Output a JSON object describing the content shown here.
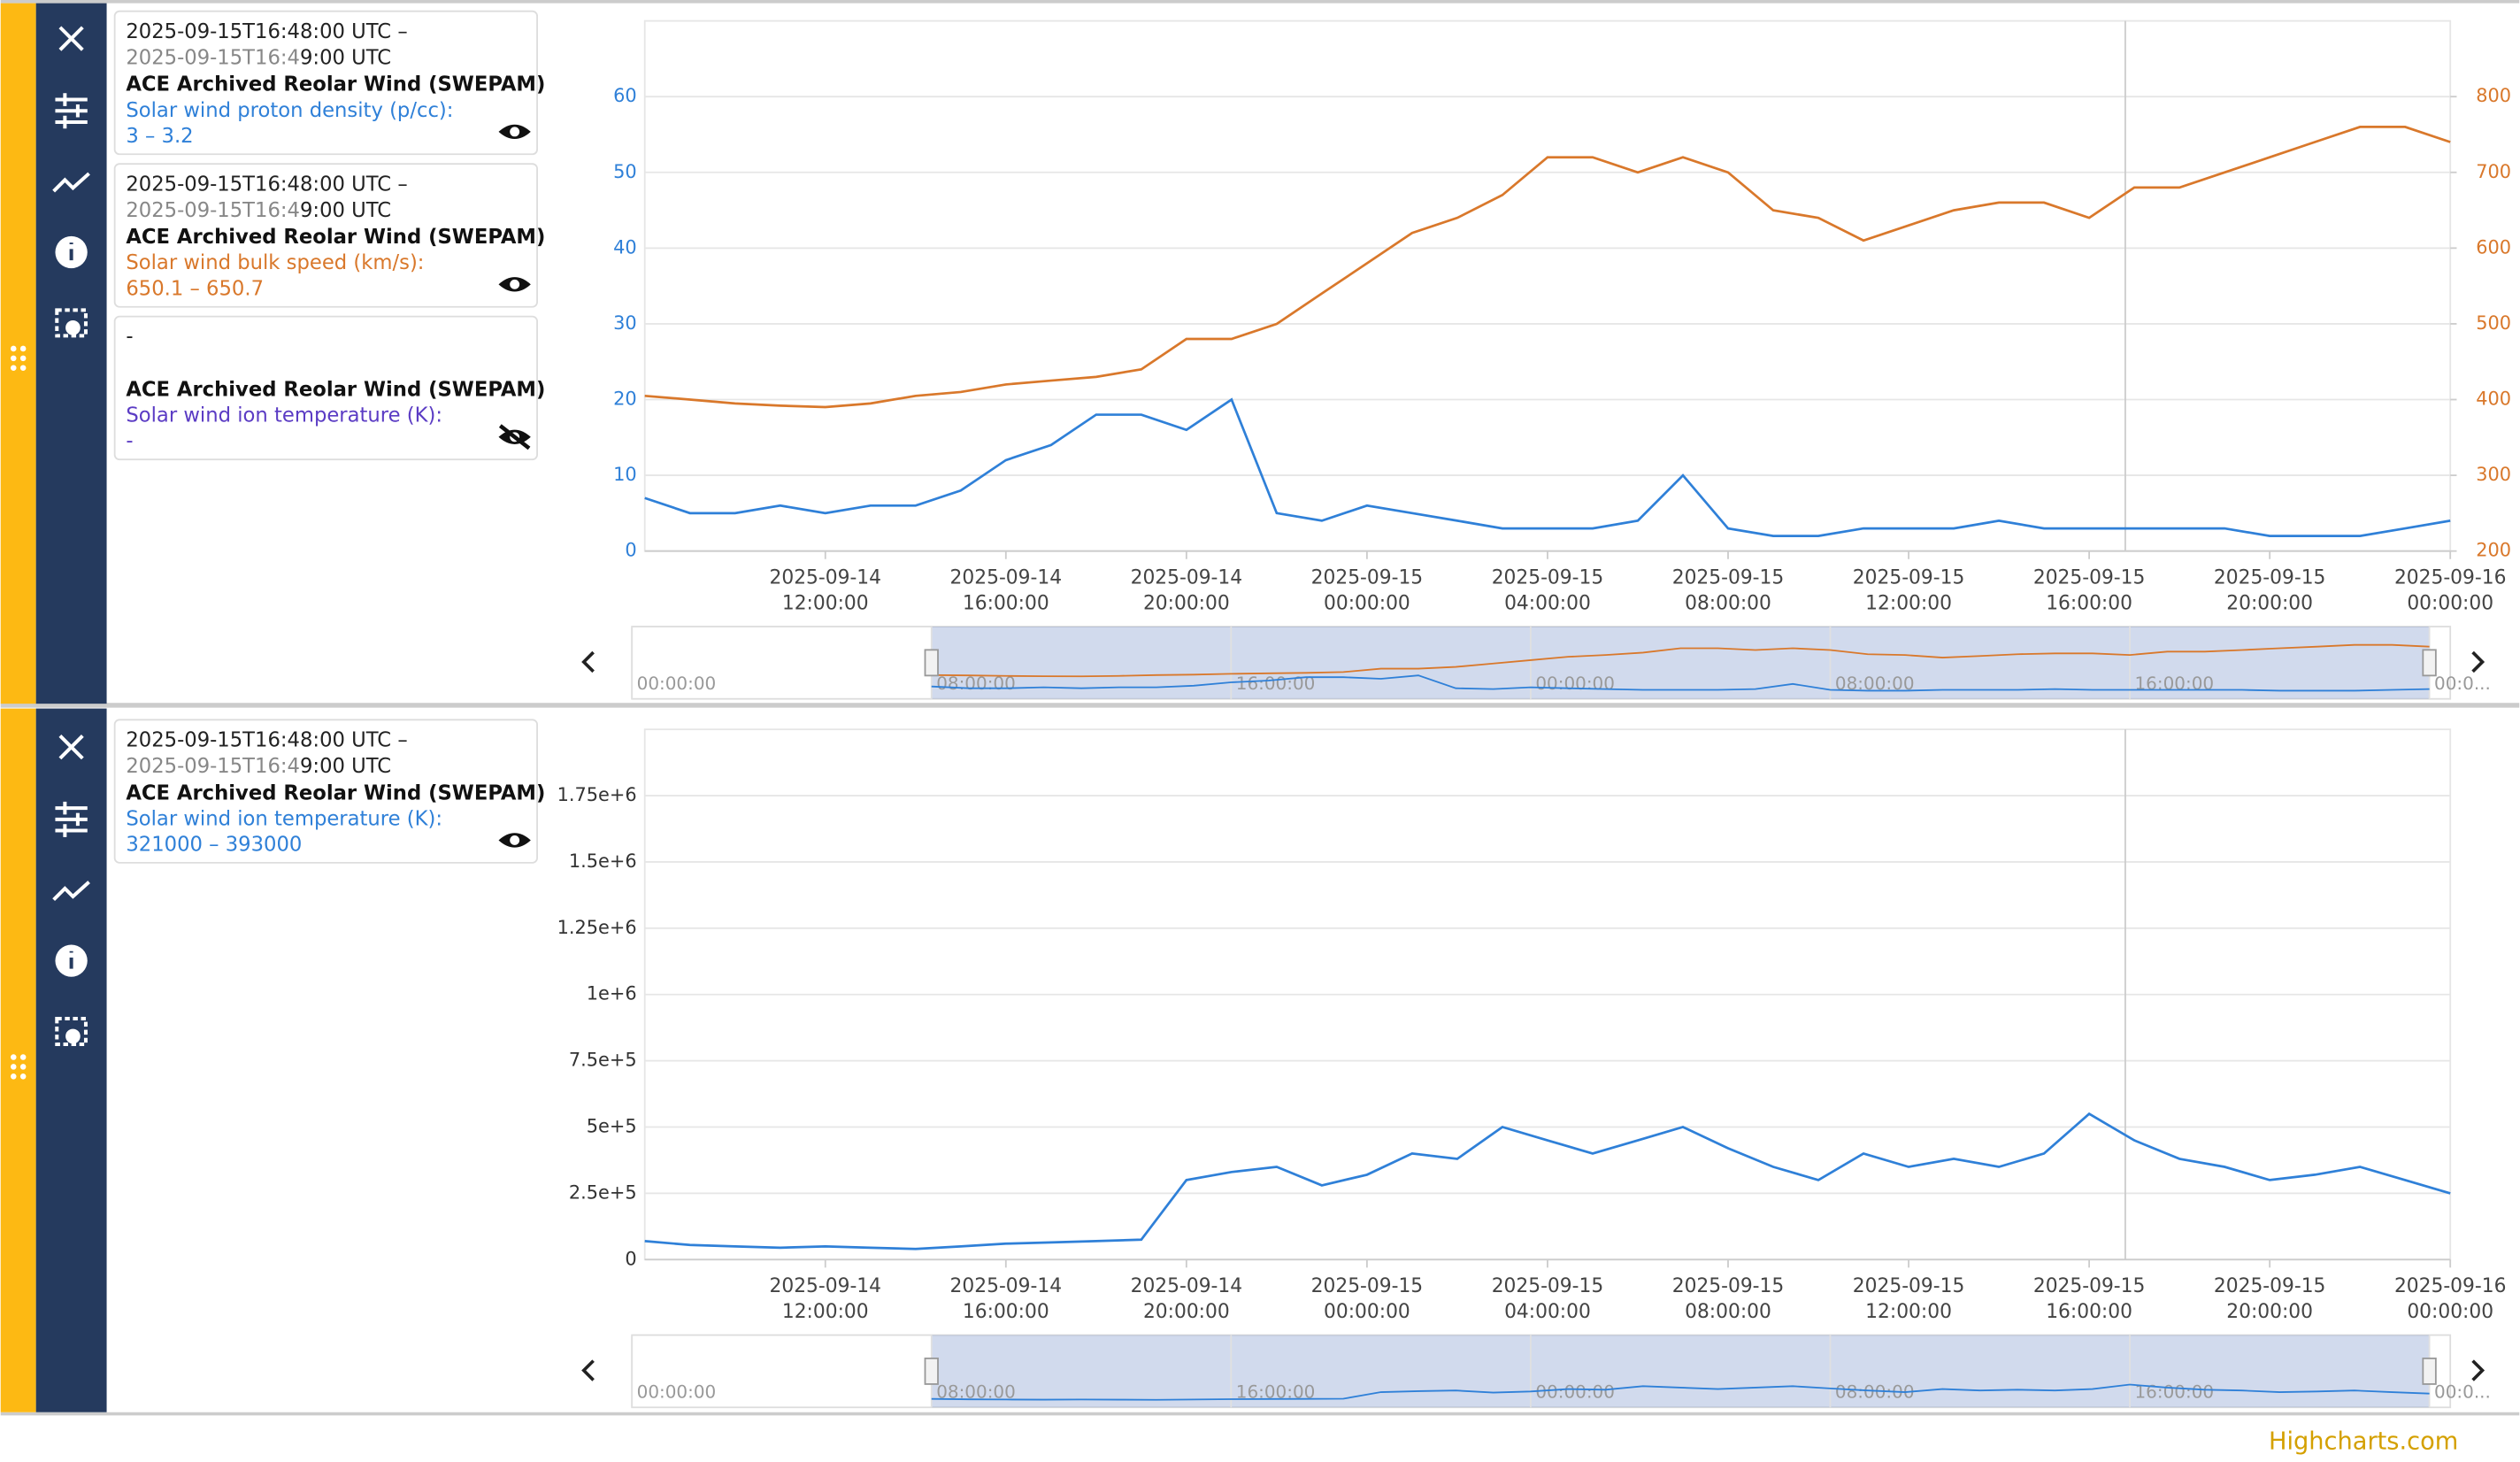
{
  "panels": [
    {
      "cards": [
        {
          "time_start": "2025-09-15T16:48:00 UTC –",
          "time_end": [
            "2025-09-15T16:4",
            "9:00 UTC"
          ],
          "source": "ACE Archived Reolar Wind (SWEPAM)",
          "label": "Solar wind proton density (p/cc):",
          "value": "3 – 3.2",
          "color": "#2f80d8",
          "visible": true
        },
        {
          "time_start": "2025-09-15T16:48:00 UTC –",
          "time_end": [
            "2025-09-15T16:4",
            "9:00 UTC"
          ],
          "source": "ACE Archived Reolar Wind (SWEPAM)",
          "label": "Solar wind bulk speed (km/s):",
          "value": "650.1 – 650.7",
          "color": "#d9782b",
          "visible": true
        },
        {
          "time_start": "-",
          "source": "ACE Archived Reolar Wind (SWEPAM)",
          "label": "Solar wind ion temperature (K):",
          "value": "-",
          "color": "#5b3cc4",
          "visible": false
        }
      ]
    },
    {
      "cards": [
        {
          "time_start": "2025-09-15T16:48:00 UTC –",
          "time_end": [
            "2025-09-15T16:4",
            "9:00 UTC"
          ],
          "source": "ACE Archived Reolar Wind (SWEPAM)",
          "label": "Solar wind ion temperature (K):",
          "value": "321000 – 393000",
          "color": "#2f80d8",
          "visible": true
        }
      ]
    }
  ],
  "chart_data": [
    {
      "type": "line",
      "x": [
        "2025-09-14T08:00:00",
        "2025-09-14T09:00:00",
        "2025-09-14T10:00:00",
        "2025-09-14T11:00:00",
        "2025-09-14T12:00:00",
        "2025-09-14T13:00:00",
        "2025-09-14T14:00:00",
        "2025-09-14T15:00:00",
        "2025-09-14T16:00:00",
        "2025-09-14T17:00:00",
        "2025-09-14T18:00:00",
        "2025-09-14T19:00:00",
        "2025-09-14T20:00:00",
        "2025-09-14T21:00:00",
        "2025-09-14T22:00:00",
        "2025-09-14T23:00:00",
        "2025-09-15T00:00:00",
        "2025-09-15T01:00:00",
        "2025-09-15T02:00:00",
        "2025-09-15T03:00:00",
        "2025-09-15T04:00:00",
        "2025-09-15T05:00:00",
        "2025-09-15T06:00:00",
        "2025-09-15T07:00:00",
        "2025-09-15T08:00:00",
        "2025-09-15T09:00:00",
        "2025-09-15T10:00:00",
        "2025-09-15T11:00:00",
        "2025-09-15T12:00:00",
        "2025-09-15T13:00:00",
        "2025-09-15T14:00:00",
        "2025-09-15T15:00:00",
        "2025-09-15T16:00:00",
        "2025-09-15T17:00:00",
        "2025-09-15T18:00:00",
        "2025-09-15T19:00:00",
        "2025-09-15T20:00:00",
        "2025-09-15T21:00:00",
        "2025-09-15T22:00:00",
        "2025-09-15T23:00:00",
        "2025-09-16T00:00:00"
      ],
      "xlim": [
        "2025-09-14T08:00:00",
        "2025-09-16T00:00:00"
      ],
      "xticks": [
        {
          "value": "2025-09-14T12:00:00",
          "label": [
            "2025-09-14",
            "12:00:00"
          ]
        },
        {
          "value": "2025-09-14T16:00:00",
          "label": [
            "2025-09-14",
            "16:00:00"
          ]
        },
        {
          "value": "2025-09-14T20:00:00",
          "label": [
            "2025-09-14",
            "20:00:00"
          ]
        },
        {
          "value": "2025-09-15T00:00:00",
          "label": [
            "2025-09-15",
            "00:00:00"
          ]
        },
        {
          "value": "2025-09-15T04:00:00",
          "label": [
            "2025-09-15",
            "04:00:00"
          ]
        },
        {
          "value": "2025-09-15T08:00:00",
          "label": [
            "2025-09-15",
            "08:00:00"
          ]
        },
        {
          "value": "2025-09-15T12:00:00",
          "label": [
            "2025-09-15",
            "12:00:00"
          ]
        },
        {
          "value": "2025-09-15T16:00:00",
          "label": [
            "2025-09-15",
            "16:00:00"
          ]
        },
        {
          "value": "2025-09-15T20:00:00",
          "label": [
            "2025-09-15",
            "20:00:00"
          ]
        },
        {
          "value": "2025-09-16T00:00:00",
          "label": [
            "2025-09-16",
            "00:00:00"
          ]
        }
      ],
      "ylim": [
        0,
        70
      ],
      "yticks": [
        0,
        10,
        20,
        30,
        40,
        50,
        60
      ],
      "ycolor": "#2f80d8",
      "y2lim": [
        200,
        900
      ],
      "y2ticks": [
        200,
        300,
        400,
        500,
        600,
        700,
        800
      ],
      "y2color": "#d9782b",
      "grid": true,
      "crosshair": "2025-09-15T16:48:00",
      "series": [
        {
          "color": "#2f80d8",
          "values": [
            7,
            5,
            5,
            6,
            5,
            6,
            6,
            8,
            12,
            14,
            18,
            18,
            16,
            20,
            5,
            4,
            6,
            5,
            4,
            3,
            3,
            3,
            4,
            10,
            3,
            2,
            2,
            3,
            3,
            3,
            4,
            3,
            3,
            3,
            3,
            3,
            2,
            2,
            2,
            3,
            4
          ]
        },
        {
          "color": "#d9782b",
          "axis": "y2",
          "values": [
            405,
            400,
            395,
            392,
            390,
            395,
            405,
            410,
            420,
            425,
            430,
            440,
            480,
            480,
            500,
            540,
            580,
            620,
            640,
            670,
            720,
            720,
            700,
            720,
            700,
            650,
            640,
            610,
            630,
            650,
            660,
            660,
            640,
            680,
            680,
            700,
            720,
            740,
            760,
            760,
            740
          ]
        }
      ],
      "navigator": {
        "xlim": [
          "2025-09-14T00:00:00",
          "2025-09-16T00:00:00"
        ],
        "selection": [
          "2025-09-14T08:00:00",
          "2025-09-16T00:00:00"
        ],
        "labels": [
          {
            "value": "2025-09-14T00:00:00",
            "label": "00:00:00"
          },
          {
            "value": "2025-09-14T08:00:00",
            "label": "08:00:00"
          },
          {
            "value": "2025-09-14T16:00:00",
            "label": "16:00:00"
          },
          {
            "value": "2025-09-15T00:00:00",
            "label": "00:00:00"
          },
          {
            "value": "2025-09-15T08:00:00",
            "label": "08:00:00"
          },
          {
            "value": "2025-09-15T16:00:00",
            "label": "16:00:00"
          },
          {
            "value": "2025-09-16T00:00:00",
            "label": "00:0..."
          }
        ]
      }
    },
    {
      "type": "line",
      "x": [
        "2025-09-14T08:00:00",
        "2025-09-14T09:00:00",
        "2025-09-14T10:00:00",
        "2025-09-14T11:00:00",
        "2025-09-14T12:00:00",
        "2025-09-14T13:00:00",
        "2025-09-14T14:00:00",
        "2025-09-14T15:00:00",
        "2025-09-14T16:00:00",
        "2025-09-14T17:00:00",
        "2025-09-14T18:00:00",
        "2025-09-14T19:00:00",
        "2025-09-14T20:00:00",
        "2025-09-14T21:00:00",
        "2025-09-14T22:00:00",
        "2025-09-14T23:00:00",
        "2025-09-15T00:00:00",
        "2025-09-15T01:00:00",
        "2025-09-15T02:00:00",
        "2025-09-15T03:00:00",
        "2025-09-15T04:00:00",
        "2025-09-15T05:00:00",
        "2025-09-15T06:00:00",
        "2025-09-15T07:00:00",
        "2025-09-15T08:00:00",
        "2025-09-15T09:00:00",
        "2025-09-15T10:00:00",
        "2025-09-15T11:00:00",
        "2025-09-15T12:00:00",
        "2025-09-15T13:00:00",
        "2025-09-15T14:00:00",
        "2025-09-15T15:00:00",
        "2025-09-15T16:00:00",
        "2025-09-15T17:00:00",
        "2025-09-15T18:00:00",
        "2025-09-15T19:00:00",
        "2025-09-15T20:00:00",
        "2025-09-15T21:00:00",
        "2025-09-15T22:00:00",
        "2025-09-15T23:00:00",
        "2025-09-16T00:00:00"
      ],
      "xlim": [
        "2025-09-14T08:00:00",
        "2025-09-16T00:00:00"
      ],
      "xticks": [
        {
          "value": "2025-09-14T12:00:00",
          "label": [
            "2025-09-14",
            "12:00:00"
          ]
        },
        {
          "value": "2025-09-14T16:00:00",
          "label": [
            "2025-09-14",
            "16:00:00"
          ]
        },
        {
          "value": "2025-09-14T20:00:00",
          "label": [
            "2025-09-14",
            "20:00:00"
          ]
        },
        {
          "value": "2025-09-15T00:00:00",
          "label": [
            "2025-09-15",
            "00:00:00"
          ]
        },
        {
          "value": "2025-09-15T04:00:00",
          "label": [
            "2025-09-15",
            "04:00:00"
          ]
        },
        {
          "value": "2025-09-15T08:00:00",
          "label": [
            "2025-09-15",
            "08:00:00"
          ]
        },
        {
          "value": "2025-09-15T12:00:00",
          "label": [
            "2025-09-15",
            "12:00:00"
          ]
        },
        {
          "value": "2025-09-15T16:00:00",
          "label": [
            "2025-09-15",
            "16:00:00"
          ]
        },
        {
          "value": "2025-09-15T20:00:00",
          "label": [
            "2025-09-15",
            "20:00:00"
          ]
        },
        {
          "value": "2025-09-16T00:00:00",
          "label": [
            "2025-09-16",
            "00:00:00"
          ]
        }
      ],
      "ylim": [
        0,
        2000000
      ],
      "yticks": [
        0,
        {
          "value": 250000,
          "label": "2.5e+5"
        },
        {
          "value": 500000,
          "label": "5e+5"
        },
        {
          "value": 750000,
          "label": "7.5e+5"
        },
        {
          "value": 1000000,
          "label": "1e+6"
        },
        {
          "value": 1250000,
          "label": "1.25e+6"
        },
        {
          "value": 1500000,
          "label": "1.5e+6"
        },
        {
          "value": 1750000,
          "label": "1.75e+6"
        }
      ],
      "ycolor": "#333333",
      "grid": true,
      "crosshair": "2025-09-15T16:48:00",
      "series": [
        {
          "color": "#2f80d8",
          "values": [
            70000,
            55000,
            50000,
            45000,
            50000,
            45000,
            40000,
            50000,
            60000,
            65000,
            70000,
            75000,
            300000,
            330000,
            350000,
            280000,
            320000,
            400000,
            380000,
            500000,
            450000,
            400000,
            450000,
            500000,
            420000,
            350000,
            300000,
            400000,
            350000,
            380000,
            350000,
            400000,
            550000,
            450000,
            380000,
            350000,
            300000,
            320000,
            350000,
            300000,
            250000
          ]
        }
      ],
      "navigator": {
        "xlim": [
          "2025-09-14T00:00:00",
          "2025-09-16T00:00:00"
        ],
        "selection": [
          "2025-09-14T08:00:00",
          "2025-09-16T00:00:00"
        ],
        "labels": [
          {
            "value": "2025-09-14T00:00:00",
            "label": "00:00:00"
          },
          {
            "value": "2025-09-14T08:00:00",
            "label": "08:00:00"
          },
          {
            "value": "2025-09-14T16:00:00",
            "label": "16:00:00"
          },
          {
            "value": "2025-09-15T00:00:00",
            "label": "00:00:00"
          },
          {
            "value": "2025-09-15T08:00:00",
            "label": "08:00:00"
          },
          {
            "value": "2025-09-15T16:00:00",
            "label": "16:00:00"
          },
          {
            "value": "2025-09-16T00:00:00",
            "label": "00:0..."
          }
        ]
      }
    }
  ],
  "credit": "Highcharts.com"
}
